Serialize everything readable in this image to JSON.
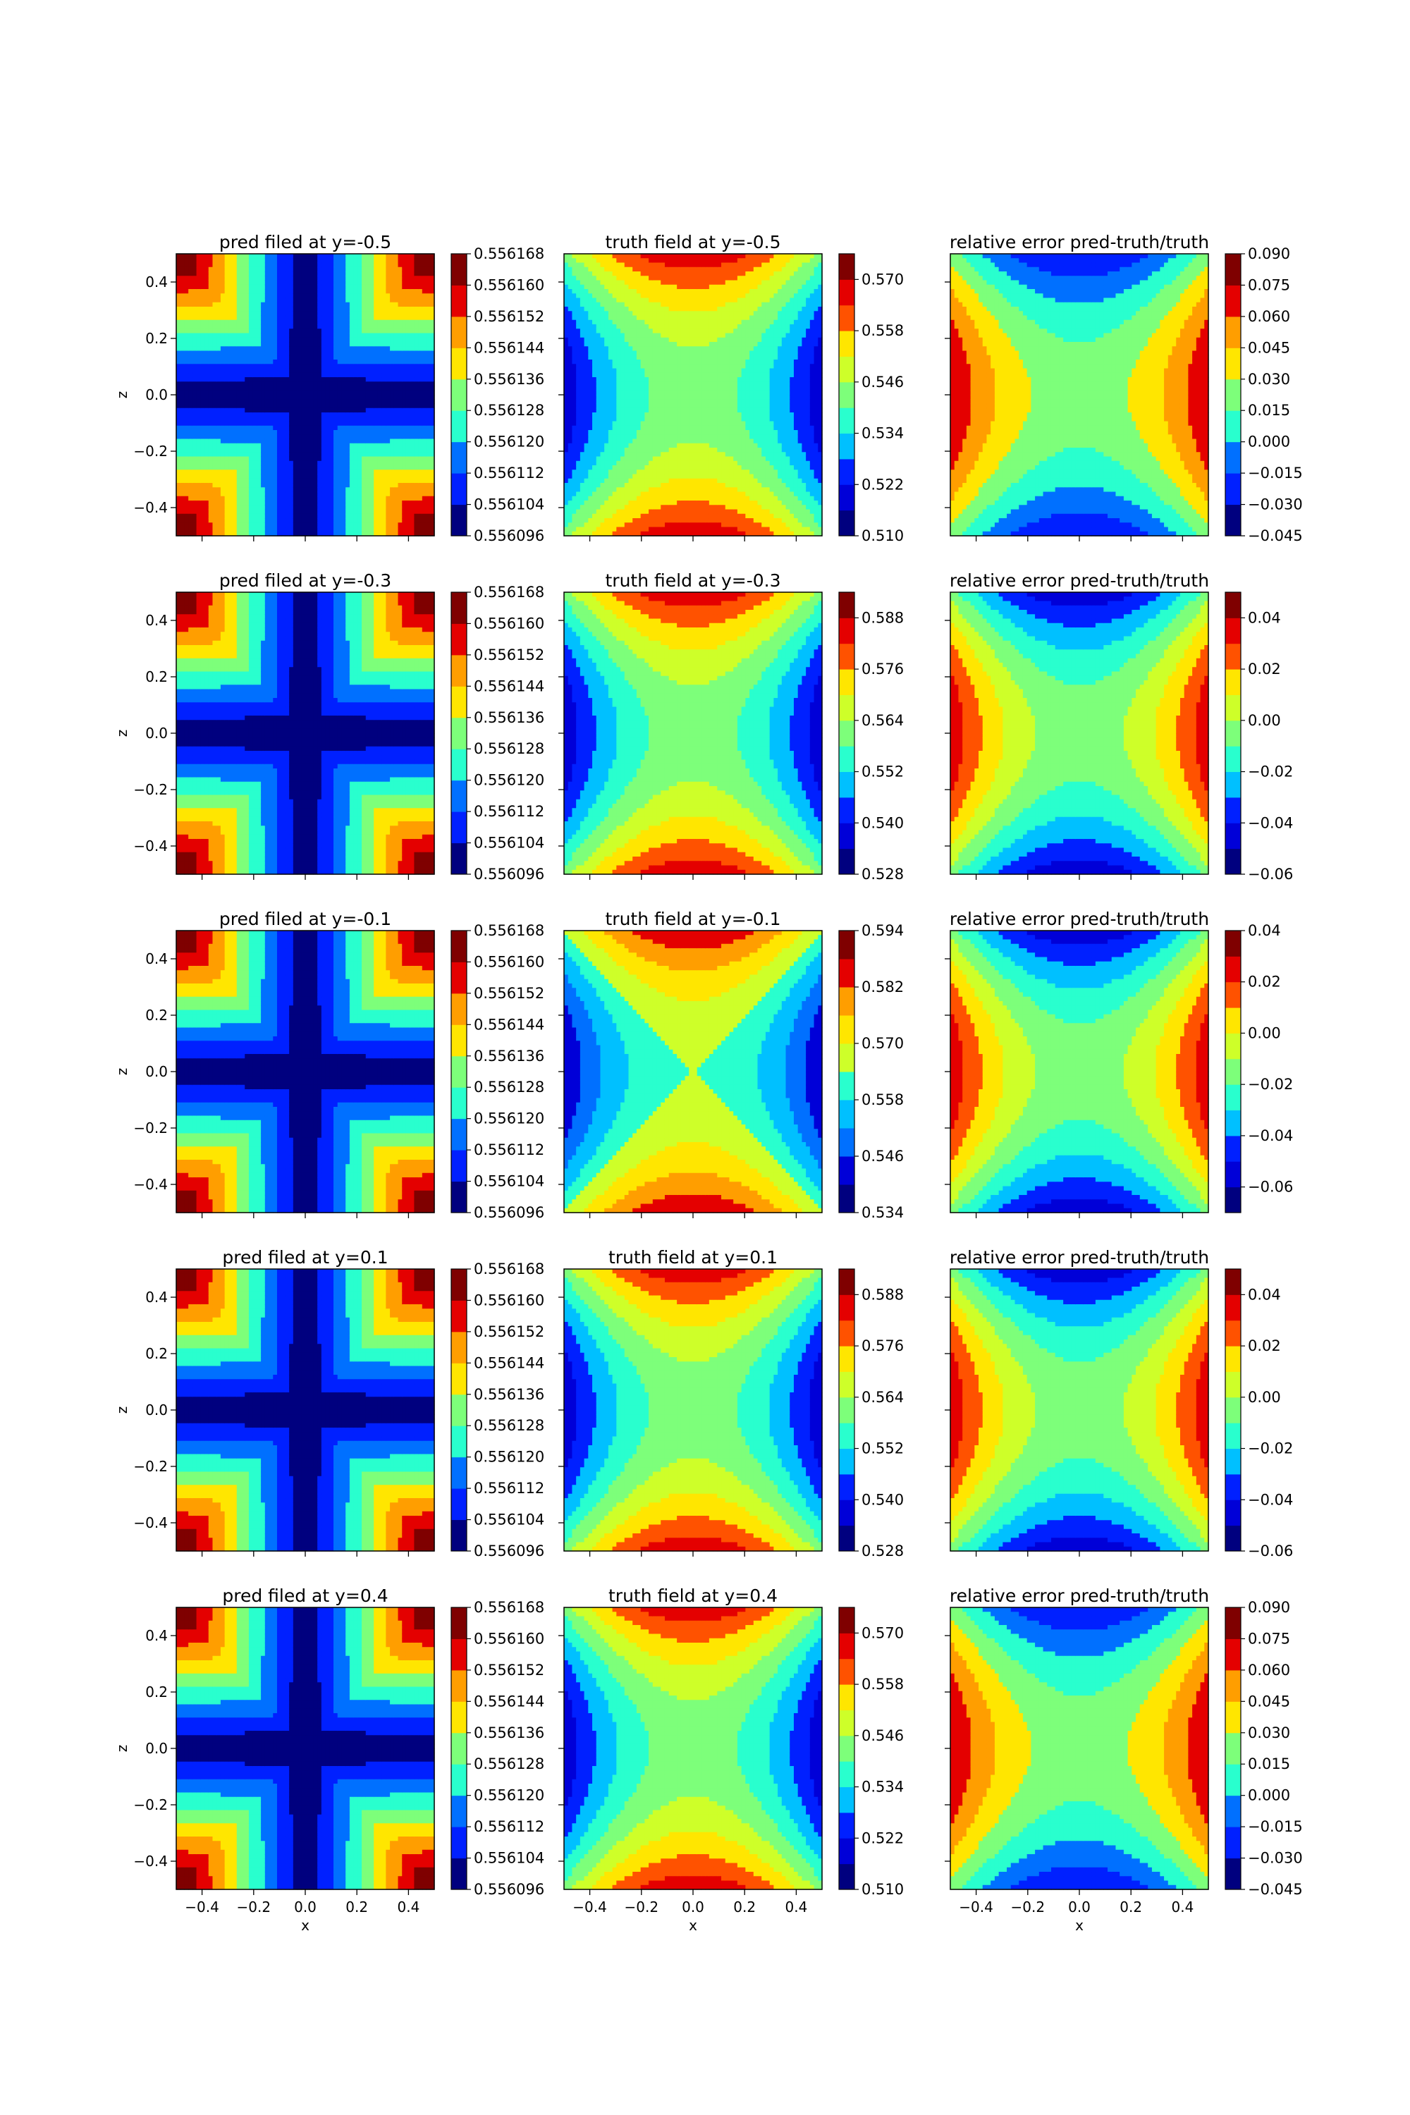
{
  "figure": {
    "row_ylabel": "z",
    "bottom_xlabel": "x"
  },
  "colormap": [
    "#00007f",
    "#0000d8",
    "#0020ff",
    "#0070ff",
    "#00c0ff",
    "#29ffce",
    "#7dff7a",
    "#ceff29",
    "#ffe600",
    "#ff9e00",
    "#ff5200",
    "#e40000",
    "#7f0000"
  ],
  "chart_data": [
    {
      "type": "heatmap",
      "title": "pred filed at y=-0.5",
      "pattern": "cross",
      "levels": 9,
      "x_ticks": [
        "−0.4",
        "−0.2",
        "0.0",
        "0.2",
        "0.4"
      ],
      "y_ticks": [
        "0.4",
        "0.2",
        "0.0",
        "−0.2",
        "−0.4"
      ],
      "xlim": [
        -0.5,
        0.5
      ],
      "ylim": [
        -0.5,
        0.5
      ],
      "colorbar_ticks": [
        "0.556168",
        "0.556160",
        "0.556152",
        "0.556144",
        "0.556136",
        "0.556128",
        "0.556120",
        "0.556112",
        "0.556104",
        "0.556096"
      ],
      "colorbar_range": [
        0.556096,
        0.556168
      ]
    },
    {
      "type": "heatmap",
      "title": "truth field at y=-0.5",
      "pattern": "saddle",
      "levels": 11,
      "x_ticks": [
        "−0.4",
        "−0.2",
        "0.0",
        "0.2",
        "0.4"
      ],
      "xlim": [
        -0.5,
        0.5
      ],
      "ylim": [
        -0.5,
        0.5
      ],
      "colorbar_ticks": [
        "0.570",
        "0.558",
        "0.546",
        "0.534",
        "0.522",
        "0.510"
      ],
      "colorbar_range": [
        0.51,
        0.576
      ]
    },
    {
      "type": "heatmap",
      "title": "relative error pred-truth/truth",
      "pattern": "saddle_inverse",
      "levels": 9,
      "x_ticks": [
        "−0.4",
        "−0.2",
        "0.0",
        "0.2",
        "0.4"
      ],
      "xlim": [
        -0.5,
        0.5
      ],
      "ylim": [
        -0.5,
        0.5
      ],
      "colorbar_ticks": [
        "0.090",
        "0.075",
        "0.060",
        "0.045",
        "0.030",
        "0.015",
        "0.000",
        "−0.015",
        "−0.030",
        "−0.045"
      ],
      "colorbar_range": [
        -0.045,
        0.09
      ]
    },
    {
      "type": "heatmap",
      "title": "pred filed at y=-0.3",
      "pattern": "cross",
      "levels": 9,
      "x_ticks": [
        "−0.4",
        "−0.2",
        "0.0",
        "0.2",
        "0.4"
      ],
      "y_ticks": [
        "0.4",
        "0.2",
        "0.0",
        "−0.2",
        "−0.4"
      ],
      "xlim": [
        -0.5,
        0.5
      ],
      "ylim": [
        -0.5,
        0.5
      ],
      "colorbar_ticks": [
        "0.556168",
        "0.556160",
        "0.556152",
        "0.556144",
        "0.556136",
        "0.556128",
        "0.556120",
        "0.556112",
        "0.556104",
        "0.556096"
      ],
      "colorbar_range": [
        0.556096,
        0.556168
      ]
    },
    {
      "type": "heatmap",
      "title": "truth field at y=-0.3",
      "pattern": "saddle",
      "levels": 11,
      "x_ticks": [
        "−0.4",
        "−0.2",
        "0.0",
        "0.2",
        "0.4"
      ],
      "xlim": [
        -0.5,
        0.5
      ],
      "ylim": [
        -0.5,
        0.5
      ],
      "colorbar_ticks": [
        "0.588",
        "0.576",
        "0.564",
        "0.552",
        "0.540",
        "0.528"
      ],
      "colorbar_range": [
        0.528,
        0.594
      ]
    },
    {
      "type": "heatmap",
      "title": "relative error pred-truth/truth",
      "pattern": "saddle_inverse",
      "levels": 11,
      "x_ticks": [
        "−0.4",
        "−0.2",
        "0.0",
        "0.2",
        "0.4"
      ],
      "xlim": [
        -0.5,
        0.5
      ],
      "ylim": [
        -0.5,
        0.5
      ],
      "colorbar_ticks": [
        "0.04",
        "0.02",
        "0.00",
        "−0.02",
        "−0.04",
        "−0.06"
      ],
      "colorbar_range": [
        -0.06,
        0.05
      ]
    },
    {
      "type": "heatmap",
      "title": "pred filed at y=-0.1",
      "pattern": "cross",
      "levels": 9,
      "x_ticks": [
        "−0.4",
        "−0.2",
        "0.0",
        "0.2",
        "0.4"
      ],
      "y_ticks": [
        "0.4",
        "0.2",
        "0.0",
        "−0.2",
        "−0.4"
      ],
      "xlim": [
        -0.5,
        0.5
      ],
      "ylim": [
        -0.5,
        0.5
      ],
      "colorbar_ticks": [
        "0.556168",
        "0.556160",
        "0.556152",
        "0.556144",
        "0.556136",
        "0.556128",
        "0.556120",
        "0.556112",
        "0.556104",
        "0.556096"
      ],
      "colorbar_range": [
        0.556096,
        0.556168
      ]
    },
    {
      "type": "heatmap",
      "title": "truth field at y=-0.1",
      "pattern": "saddle",
      "levels": 10,
      "x_ticks": [
        "−0.4",
        "−0.2",
        "0.0",
        "0.2",
        "0.4"
      ],
      "xlim": [
        -0.5,
        0.5
      ],
      "ylim": [
        -0.5,
        0.5
      ],
      "colorbar_ticks": [
        "0.594",
        "0.582",
        "0.570",
        "0.558",
        "0.546",
        "0.534"
      ],
      "colorbar_range": [
        0.534,
        0.594
      ]
    },
    {
      "type": "heatmap",
      "title": "relative error pred-truth/truth",
      "pattern": "saddle_inverse",
      "levels": 11,
      "x_ticks": [
        "−0.4",
        "−0.2",
        "0.0",
        "0.2",
        "0.4"
      ],
      "xlim": [
        -0.5,
        0.5
      ],
      "ylim": [
        -0.5,
        0.5
      ],
      "colorbar_ticks": [
        "0.04",
        "0.02",
        "0.00",
        "−0.02",
        "−0.04",
        "−0.06"
      ],
      "colorbar_range": [
        -0.07,
        0.04
      ]
    },
    {
      "type": "heatmap",
      "title": "pred filed at y=0.1",
      "pattern": "cross",
      "levels": 9,
      "x_ticks": [
        "−0.4",
        "−0.2",
        "0.0",
        "0.2",
        "0.4"
      ],
      "y_ticks": [
        "0.4",
        "0.2",
        "0.0",
        "−0.2",
        "−0.4"
      ],
      "xlim": [
        -0.5,
        0.5
      ],
      "ylim": [
        -0.5,
        0.5
      ],
      "colorbar_ticks": [
        "0.556168",
        "0.556160",
        "0.556152",
        "0.556144",
        "0.556136",
        "0.556128",
        "0.556120",
        "0.556112",
        "0.556104",
        "0.556096"
      ],
      "colorbar_range": [
        0.556096,
        0.556168
      ]
    },
    {
      "type": "heatmap",
      "title": "truth field at y=0.1",
      "pattern": "saddle",
      "levels": 11,
      "x_ticks": [
        "−0.4",
        "−0.2",
        "0.0",
        "0.2",
        "0.4"
      ],
      "xlim": [
        -0.5,
        0.5
      ],
      "ylim": [
        -0.5,
        0.5
      ],
      "colorbar_ticks": [
        "0.588",
        "0.576",
        "0.564",
        "0.552",
        "0.540",
        "0.528"
      ],
      "colorbar_range": [
        0.528,
        0.594
      ]
    },
    {
      "type": "heatmap",
      "title": "relative error pred-truth/truth",
      "pattern": "saddle_inverse",
      "levels": 11,
      "x_ticks": [
        "−0.4",
        "−0.2",
        "0.0",
        "0.2",
        "0.4"
      ],
      "xlim": [
        -0.5,
        0.5
      ],
      "ylim": [
        -0.5,
        0.5
      ],
      "colorbar_ticks": [
        "0.04",
        "0.02",
        "0.00",
        "−0.02",
        "−0.04",
        "−0.06"
      ],
      "colorbar_range": [
        -0.06,
        0.05
      ]
    },
    {
      "type": "heatmap",
      "title": "pred filed at y=0.4",
      "pattern": "cross",
      "levels": 9,
      "x_ticks": [
        "−0.4",
        "−0.2",
        "0.0",
        "0.2",
        "0.4"
      ],
      "y_ticks": [
        "0.4",
        "0.2",
        "0.0",
        "−0.2",
        "−0.4"
      ],
      "xlim": [
        -0.5,
        0.5
      ],
      "ylim": [
        -0.5,
        0.5
      ],
      "colorbar_ticks": [
        "0.556168",
        "0.556160",
        "0.556152",
        "0.556144",
        "0.556136",
        "0.556128",
        "0.556120",
        "0.556112",
        "0.556104",
        "0.556096"
      ],
      "colorbar_range": [
        0.556096,
        0.556168
      ]
    },
    {
      "type": "heatmap",
      "title": "truth field at y=0.4",
      "pattern": "saddle",
      "levels": 11,
      "x_ticks": [
        "−0.4",
        "−0.2",
        "0.0",
        "0.2",
        "0.4"
      ],
      "xlim": [
        -0.5,
        0.5
      ],
      "ylim": [
        -0.5,
        0.5
      ],
      "colorbar_ticks": [
        "0.570",
        "0.558",
        "0.546",
        "0.534",
        "0.522",
        "0.510"
      ],
      "colorbar_range": [
        0.51,
        0.576
      ]
    },
    {
      "type": "heatmap",
      "title": "relative error pred-truth/truth",
      "pattern": "saddle_inverse",
      "levels": 9,
      "x_ticks": [
        "−0.4",
        "−0.2",
        "0.0",
        "0.2",
        "0.4"
      ],
      "xlim": [
        -0.5,
        0.5
      ],
      "ylim": [
        -0.5,
        0.5
      ],
      "colorbar_ticks": [
        "0.090",
        "0.075",
        "0.060",
        "0.045",
        "0.030",
        "0.015",
        "0.000",
        "−0.015",
        "−0.030",
        "−0.045"
      ],
      "colorbar_range": [
        -0.045,
        0.09
      ]
    }
  ]
}
